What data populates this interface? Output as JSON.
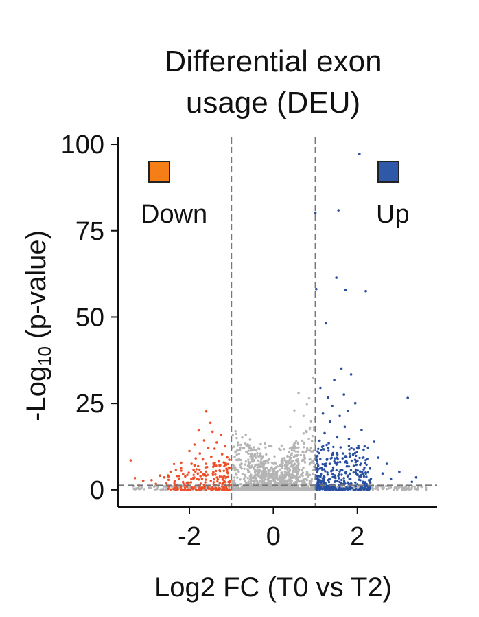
{
  "chart_data": {
    "type": "scatter",
    "title_lines": [
      "Differential exon",
      "usage (DEU)"
    ],
    "xlabel": "Log2 FC (T0 vs T2)",
    "ylabel_main": "-Log",
    "ylabel_sub": "10",
    "ylabel_rest": " (p-value)",
    "xlim": [
      -3.7,
      3.9
    ],
    "ylim": [
      -5,
      102
    ],
    "x_ticks": [
      -2,
      0,
      2
    ],
    "x_tick_labels": [
      "-2",
      "0",
      "2"
    ],
    "y_ticks": [
      0,
      25,
      50,
      75,
      100
    ],
    "y_tick_labels": [
      "0",
      "25",
      "50",
      "75",
      "100"
    ],
    "thresholds": {
      "fc": [
        -1,
        1
      ],
      "pvalue_line": 1.3
    },
    "grid": false,
    "colors": {
      "down": "#EE4F28",
      "up": "#284FA0",
      "ns": "#B4B4B4",
      "down_legend": "#F57F16",
      "up_legend": "#2F58A8",
      "axis": "#111111",
      "threshold": "#777777"
    },
    "legend": [
      {
        "name": "Down",
        "color": "#F57F16",
        "placement": "top-left"
      },
      {
        "name": "Up",
        "color": "#2F58A8",
        "placement": "top-right"
      }
    ],
    "series": [
      {
        "name": "Down",
        "points": [
          [
            -3.4,
            8.5
          ],
          [
            -3.3,
            3.4
          ],
          [
            -3.2,
            1.2
          ],
          [
            -3.1,
            2.6
          ],
          [
            -2.9,
            2.8
          ],
          [
            -2.8,
            1.7
          ],
          [
            -2.7,
            4.1
          ],
          [
            -2.6,
            3.6
          ],
          [
            -2.55,
            1.8
          ],
          [
            -2.5,
            1.1
          ],
          [
            -2.45,
            5.2
          ],
          [
            -2.35,
            2.5
          ],
          [
            -2.3,
            1.4
          ],
          [
            -2.25,
            3.1
          ],
          [
            -2.2,
            6.3
          ],
          [
            -2.15,
            4.5
          ],
          [
            -2.1,
            3.9
          ],
          [
            -2.05,
            2.1
          ],
          [
            -2.0,
            11.2
          ],
          [
            -1.95,
            7.5
          ],
          [
            -1.9,
            5.8
          ],
          [
            -1.88,
            13.1
          ],
          [
            -1.85,
            9.1
          ],
          [
            -1.8,
            4.7
          ],
          [
            -1.78,
            17.2
          ],
          [
            -1.75,
            10.5
          ],
          [
            -1.7,
            3.2
          ],
          [
            -1.68,
            8.8
          ],
          [
            -1.65,
            14.3
          ],
          [
            -1.6,
            22.7
          ],
          [
            -1.58,
            6.6
          ],
          [
            -1.55,
            12.1
          ],
          [
            -1.5,
            19.4
          ],
          [
            -1.48,
            9.6
          ],
          [
            -1.45,
            16.8
          ],
          [
            -1.42,
            7.2
          ],
          [
            -1.4,
            11.9
          ],
          [
            -1.38,
            4.4
          ],
          [
            -1.35,
            13.7
          ],
          [
            -1.3,
            8.2
          ],
          [
            -1.28,
            5.6
          ],
          [
            -1.25,
            15.9
          ],
          [
            -1.22,
            10.3
          ],
          [
            -1.2,
            3.5
          ],
          [
            -1.18,
            7.9
          ],
          [
            -1.15,
            12.6
          ],
          [
            -1.12,
            6.1
          ],
          [
            -1.1,
            9.4
          ],
          [
            -1.08,
            4.8
          ],
          [
            -1.05,
            8.7
          ]
        ]
      },
      {
        "name": "Up",
        "points": [
          [
            1.05,
            9.8
          ],
          [
            1.1,
            14.2
          ],
          [
            1.12,
            29.5
          ],
          [
            1.15,
            6.3
          ],
          [
            1.18,
            22.1
          ],
          [
            1.2,
            11.7
          ],
          [
            1.22,
            16.4
          ],
          [
            1.25,
            48.2
          ],
          [
            1.28,
            8.9
          ],
          [
            1.3,
            26.7
          ],
          [
            1.32,
            13.5
          ],
          [
            1.35,
            19.8
          ],
          [
            1.38,
            5.4
          ],
          [
            1.4,
            24.3
          ],
          [
            1.42,
            10.6
          ],
          [
            1.45,
            31.8
          ],
          [
            1.48,
            7.7
          ],
          [
            1.5,
            61.4
          ],
          [
            1.52,
            15.2
          ],
          [
            1.55,
            80.9
          ],
          [
            1.58,
            21.4
          ],
          [
            1.6,
            12.3
          ],
          [
            1.62,
            35.1
          ],
          [
            1.65,
            9.1
          ],
          [
            1.68,
            27.6
          ],
          [
            1.7,
            18.2
          ],
          [
            1.72,
            57.8
          ],
          [
            1.75,
            6.8
          ],
          [
            1.78,
            22.9
          ],
          [
            1.8,
            14.7
          ],
          [
            1.85,
            33.4
          ],
          [
            1.9,
            10.2
          ],
          [
            1.95,
            25.1
          ],
          [
            2.0,
            8.4
          ],
          [
            2.05,
            97.2
          ],
          [
            2.1,
            17.3
          ],
          [
            2.15,
            11.6
          ],
          [
            2.2,
            57.5
          ],
          [
            2.3,
            6.2
          ],
          [
            2.4,
            13.9
          ],
          [
            2.5,
            9.3
          ],
          [
            2.6,
            4.7
          ],
          [
            2.7,
            7.5
          ],
          [
            2.8,
            3.1
          ],
          [
            3.0,
            5.2
          ],
          [
            3.2,
            26.6
          ],
          [
            3.3,
            2.3
          ],
          [
            3.4,
            3.6
          ],
          [
            1.0,
            80.2
          ],
          [
            1.02,
            58.1
          ]
        ]
      }
    ]
  }
}
